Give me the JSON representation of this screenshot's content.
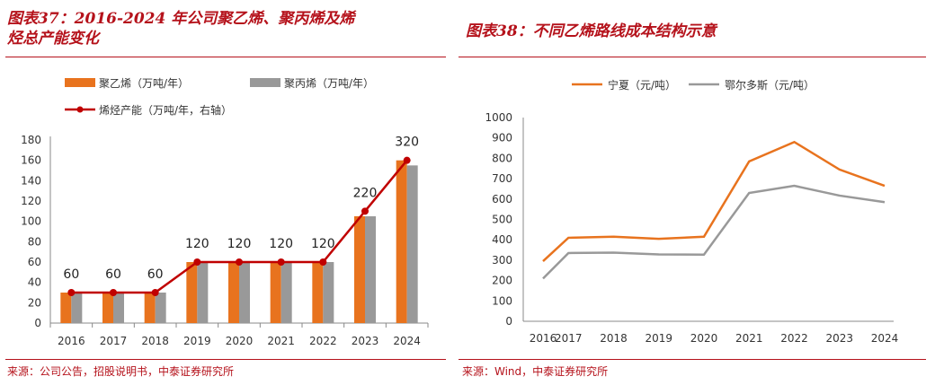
{
  "charts": [
    {
      "title": "图表37：2016-2024 年公司聚乙烯、聚丙烯及烯烃总产能变化",
      "title_lines": [
        "图表37：2016-2024 年公司聚乙烯、聚丙烯及烯",
        "烃总产能变化"
      ],
      "source": "来源：公司公告，招股说明书，中泰证券研究所"
    },
    {
      "title": "图表38：不同乙烯路线成本结构示意",
      "source": "来源：Wind，中泰证券研究所"
    }
  ],
  "colors": {
    "accent": "#b5121b",
    "orange": "#e8731e",
    "gray": "#999999",
    "red_line": "#c00000"
  },
  "chart_data": [
    {
      "type": "bar",
      "title": "图表37：2016-2024 年公司聚乙烯、聚丙烯及烯烃总产能变化",
      "categories": [
        "2016",
        "2017",
        "2018",
        "2019",
        "2020",
        "2021",
        "2022",
        "2023",
        "2024"
      ],
      "series": [
        {
          "name": "聚乙烯（万吨/年）",
          "kind": "bar",
          "axis": "left",
          "values": [
            30,
            30,
            30,
            60,
            60,
            60,
            60,
            105,
            160
          ]
        },
        {
          "name": "聚丙烯（万吨/年）",
          "kind": "bar",
          "axis": "left",
          "values": [
            30,
            30,
            30,
            60,
            60,
            60,
            60,
            105,
            155
          ]
        },
        {
          "name": "烯烃产能（万吨/年，右轴）",
          "kind": "line",
          "axis": "right",
          "values": [
            60,
            60,
            60,
            120,
            120,
            120,
            120,
            220,
            320
          ]
        }
      ],
      "data_labels": [
        "60",
        "60",
        "60",
        "120",
        "120",
        "120",
        "120",
        "220",
        "320"
      ],
      "ylim": [
        0,
        180
      ],
      "yticks": [
        0,
        20,
        40,
        60,
        80,
        100,
        120,
        140,
        160,
        180
      ],
      "y2lim": [
        0,
        360
      ],
      "xlabel": "",
      "ylabel": "",
      "legend": "top-left"
    },
    {
      "type": "line",
      "title": "图表38：不同乙烯路线成本结构示意",
      "categories": [
        "2016",
        "2017",
        "2018",
        "2019",
        "2020",
        "2021",
        "2022",
        "2023",
        "2024"
      ],
      "series": [
        {
          "name": "宁夏（元/吨）",
          "values": [
            295,
            410,
            415,
            405,
            415,
            785,
            880,
            745,
            665
          ]
        },
        {
          "name": "鄂尔多斯（元/吨）",
          "values": [
            210,
            335,
            337,
            328,
            327,
            630,
            665,
            617,
            585
          ]
        }
      ],
      "ylim": [
        0,
        1000
      ],
      "yticks": [
        0,
        100,
        200,
        300,
        400,
        500,
        600,
        700,
        800,
        900,
        1000
      ],
      "xlabel": "",
      "ylabel": "",
      "legend": "top"
    }
  ]
}
